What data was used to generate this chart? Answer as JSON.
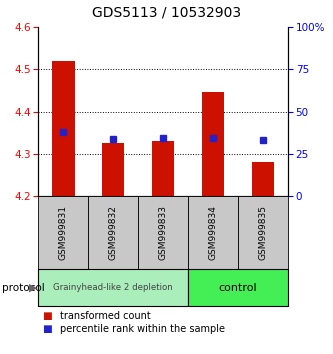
{
  "title": "GDS5113 / 10532903",
  "samples": [
    "GSM999831",
    "GSM999832",
    "GSM999833",
    "GSM999834",
    "GSM999835"
  ],
  "red_values": [
    4.52,
    4.325,
    4.33,
    4.445,
    4.28
  ],
  "blue_values": [
    4.352,
    4.336,
    4.338,
    4.338,
    4.334
  ],
  "y_min": 4.2,
  "y_max": 4.6,
  "y_ticks": [
    4.2,
    4.3,
    4.4,
    4.5,
    4.6
  ],
  "right_ticks": [
    0,
    25,
    50,
    75,
    100
  ],
  "right_tick_labels": [
    "0",
    "25",
    "50",
    "75",
    "100%"
  ],
  "bar_width": 0.45,
  "bar_color": "#CC1100",
  "blue_color": "#2222CC",
  "grp1_label": "Grainyhead-like 2 depletion",
  "grp1_color": "#AAEEBB",
  "grp2_label": "control",
  "grp2_color": "#44EE55",
  "protocol_label": "protocol",
  "legend_red": "transformed count",
  "legend_blue": "percentile rank within the sample",
  "title_fontsize": 10,
  "tick_fontsize": 7.5,
  "sample_fontsize": 6.5,
  "legend_fontsize": 7,
  "proto_fontsize": 7.5
}
